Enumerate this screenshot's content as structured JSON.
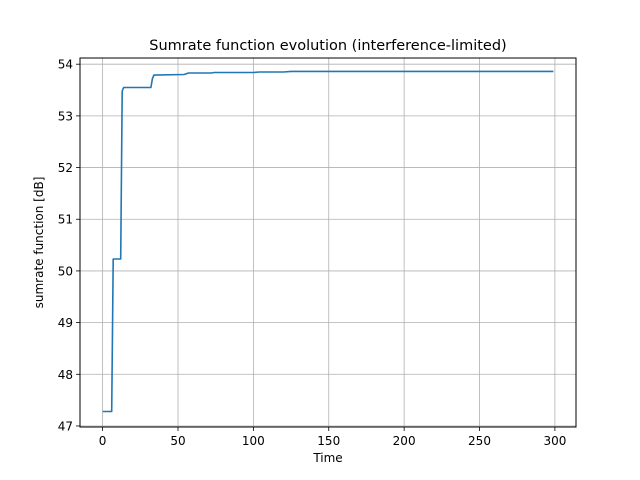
{
  "chart_data": {
    "type": "line",
    "title": "Sumrate function evolution (interference-limited)",
    "xlabel": "Time",
    "ylabel": "sumrate function [dB]",
    "xlim": [
      -15,
      314
    ],
    "ylim": [
      46.98,
      54.12
    ],
    "xticks": [
      0,
      50,
      100,
      150,
      200,
      250,
      300
    ],
    "yticks": [
      47,
      48,
      49,
      50,
      51,
      52,
      53,
      54
    ],
    "grid": true,
    "color": "#1f77b4",
    "series": [
      {
        "x": [
          0,
          6,
          7,
          12,
          13,
          13.5,
          14,
          32,
          33,
          34,
          54,
          55,
          57,
          72,
          74,
          100,
          104,
          120,
          125,
          299
        ],
        "y": [
          47.28,
          47.28,
          50.23,
          50.23,
          53.48,
          53.52,
          53.55,
          53.55,
          53.72,
          53.79,
          53.8,
          53.81,
          53.83,
          53.83,
          53.84,
          53.84,
          53.85,
          53.85,
          53.86,
          53.86
        ]
      }
    ]
  }
}
